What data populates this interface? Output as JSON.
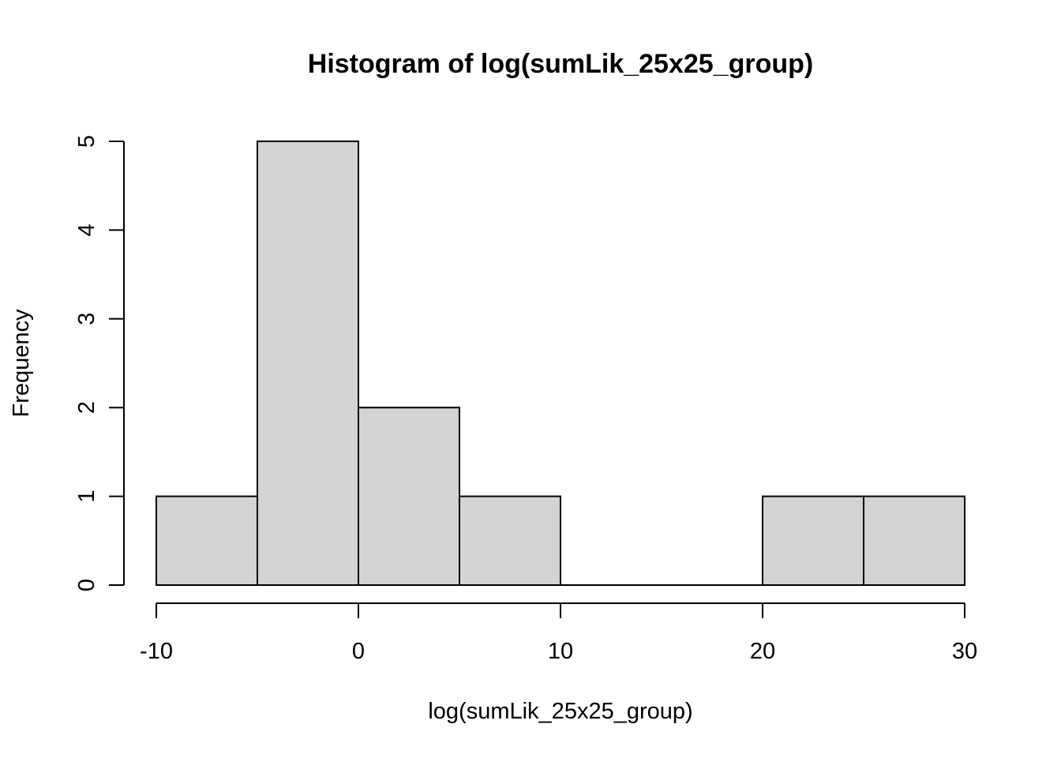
{
  "chart_data": {
    "type": "bar",
    "title": "Histogram of log(sumLik_25x25_group)",
    "xlabel": "log(sumLik_25x25_group)",
    "ylabel": "Frequency",
    "bins": [
      {
        "x0": -10,
        "x1": -5,
        "count": 1
      },
      {
        "x0": -5,
        "x1": 0,
        "count": 5
      },
      {
        "x0": 0,
        "x1": 5,
        "count": 2
      },
      {
        "x0": 5,
        "x1": 10,
        "count": 1
      },
      {
        "x0": 10,
        "x1": 15,
        "count": 0
      },
      {
        "x0": 15,
        "x1": 20,
        "count": 0
      },
      {
        "x0": 20,
        "x1": 25,
        "count": 1
      },
      {
        "x0": 25,
        "x1": 30,
        "count": 1
      }
    ],
    "xlim": [
      -10,
      30
    ],
    "ylim": [
      0,
      5
    ],
    "xticks": [
      -10,
      0,
      10,
      20,
      30
    ],
    "yticks": [
      0,
      1,
      2,
      3,
      4,
      5
    ],
    "bar_color": "#d3d3d3",
    "grid": false,
    "legend": "none"
  }
}
